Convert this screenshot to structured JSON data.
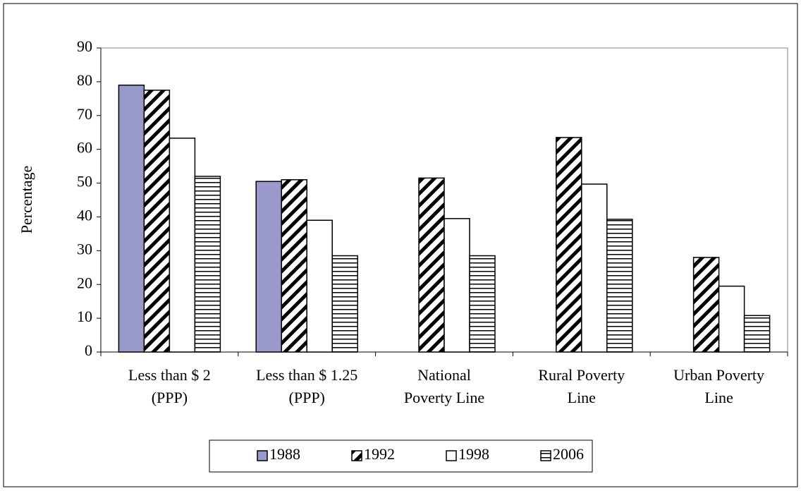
{
  "chart_data": {
    "type": "bar",
    "y_label": "Percentage",
    "categories": [
      [
        "Less than $ 2",
        "(PPP)"
      ],
      [
        "Less than $ 1.25",
        "(PPP)"
      ],
      [
        "National",
        "Poverty Line"
      ],
      [
        "Rural Poverty",
        "Line"
      ],
      [
        "Urban Poverty",
        "Line"
      ]
    ],
    "series": [
      {
        "name": "1988",
        "color": "#9999cc",
        "fill": "solid",
        "values": [
          79,
          50.5,
          null,
          null,
          null
        ]
      },
      {
        "name": "1992",
        "color": "#000000",
        "fill": "diagonal",
        "values": [
          77.5,
          51,
          51.5,
          63.5,
          28
        ]
      },
      {
        "name": "1998",
        "color": "#ffffff",
        "fill": "solid",
        "values": [
          63.3,
          39,
          39.5,
          49.7,
          19.5
        ]
      },
      {
        "name": "2006",
        "color": "#000000",
        "fill": "horizontal",
        "values": [
          52,
          28.5,
          28.5,
          39.3,
          10.8
        ]
      }
    ],
    "ylim": [
      0,
      90
    ],
    "yticks": [
      0,
      10,
      20,
      30,
      40,
      50,
      60,
      70,
      80,
      90
    ],
    "legend": "bottom"
  }
}
